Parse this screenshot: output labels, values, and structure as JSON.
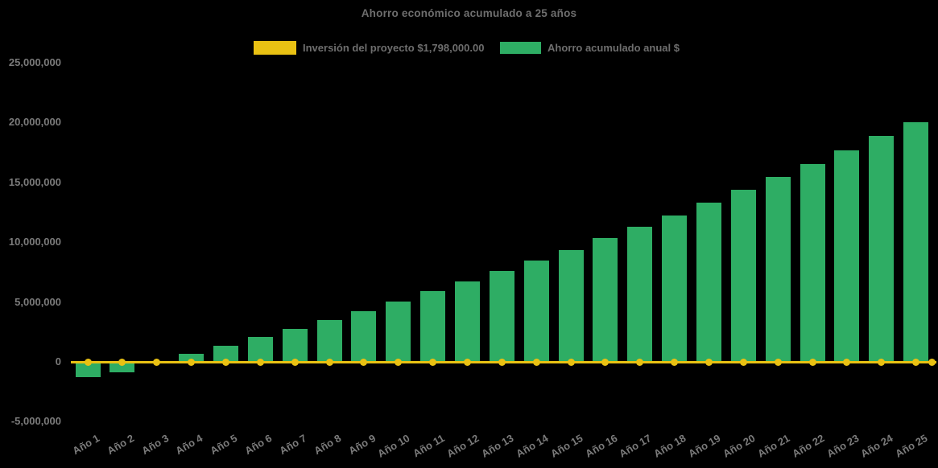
{
  "colors": {
    "background": "#000000",
    "bar_green": "#2EAD64",
    "line_yellow": "#E9C113",
    "tick_gray": "#7b7b7b",
    "title_gray": "#6e6e6e"
  },
  "chart_data": {
    "type": "bar",
    "title": "Ahorro económico acumulado a 25 años",
    "legend_position": "top-center",
    "grid": false,
    "background": "#000000",
    "x_tick_rotation_deg": 30,
    "ylim": [
      -5000000,
      25000000
    ],
    "y_ticks": {
      "values": [
        25000000,
        20000000,
        15000000,
        10000000,
        5000000,
        0,
        -5000000
      ],
      "labels": [
        "25,000,000",
        "20,000,000",
        "15,000,000",
        "10,000,000",
        "5,000,000",
        "0",
        "-5,000,000"
      ]
    },
    "categories": [
      "Año 1",
      "Año 2",
      "Año 3",
      "Año 4",
      "Año 5",
      "Año 6",
      "Año 7",
      "Año 8",
      "Año 9",
      "Año 10",
      "Año 11",
      "Año 12",
      "Año 13",
      "Año 14",
      "Año 15",
      "Año 16",
      "Año 17",
      "Año 18",
      "Año 19",
      "Año 20",
      "Año 21",
      "Año 22",
      "Año 23",
      "Año 24",
      "Año 25"
    ],
    "series": [
      {
        "name": "Inversión del proyecto $1,798,000.00",
        "type": "line",
        "color": "#E9C113",
        "marker": "circle",
        "investment_amount": 1798000.0,
        "drawn_at_value": 0,
        "values": [
          0,
          0,
          0,
          0,
          0,
          0,
          0,
          0,
          0,
          0,
          0,
          0,
          0,
          0,
          0,
          0,
          0,
          0,
          0,
          0,
          0,
          0,
          0,
          0,
          0
        ]
      },
      {
        "name": "Ahorro acumulado anual $",
        "type": "bar",
        "color": "#2EAD64",
        "values": [
          -1300000,
          -850000,
          50000,
          650000,
          1350000,
          2050000,
          2750000,
          3500000,
          4250000,
          5050000,
          5900000,
          6750000,
          7600000,
          8450000,
          9350000,
          10350000,
          11300000,
          12250000,
          13300000,
          14350000,
          15450000,
          16550000,
          17700000,
          18900000,
          20050000
        ]
      }
    ]
  }
}
